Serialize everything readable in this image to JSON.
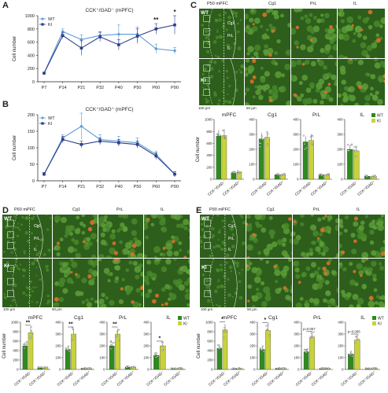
{
  "panels": {
    "A": {
      "letter": "A"
    },
    "B": {
      "letter": "B"
    },
    "C": {
      "letter": "C",
      "title": "P50 mPFC",
      "bars": [
        {
          "title": "mPFC"
        },
        {
          "title": "Cg1"
        },
        {
          "title": "PrL"
        },
        {
          "title": "IL"
        }
      ]
    },
    "D": {
      "letter": "D",
      "title": "P60 mPFC",
      "bars": [
        {
          "title": "mPFC",
          "sig": "**"
        },
        {
          "title": "Cg1",
          "sig": "**"
        },
        {
          "title": "PrL",
          "sig": "**"
        },
        {
          "title": "IL",
          "sig": "*"
        }
      ]
    },
    "E": {
      "letter": "E",
      "title": "P90 mPFC",
      "bars": [
        {
          "title": "mPFC",
          "sig": "*"
        },
        {
          "title": "Cg1",
          "sig": "*"
        },
        {
          "title": "PrL",
          "sig": "p=0.057"
        },
        {
          "title": "IL",
          "sig": "p=0.095"
        }
      ]
    }
  },
  "micro": {
    "wt": "WT",
    "ki": "KI",
    "cg1": "Cg1",
    "prl": "PrL",
    "il": "IL",
    "cg1_s": "Cg1",
    "prl_s": "PrL",
    "il_s": "IL",
    "scale100": "100 μm",
    "scale50": "50 μm"
  },
  "bar_labels": {
    "ylabel": "Cell number",
    "xcat1": "CCK⁺/GAD⁻",
    "xcat2": "CCK⁺/GAD⁺",
    "legend_wt": "WT",
    "legend_ki": "KI"
  },
  "colors": {
    "wt_green": "#2f8a1f",
    "ki_yellow": "#c8d23c",
    "wt_line": "#5b9bd5",
    "ki_line": "#2c3e8c",
    "micro_bg": "#2a5a18"
  },
  "chart_data": [
    {
      "type": "line",
      "title": "CCK⁺/GAD⁻ (mPFC)",
      "ylabel": "Cell number",
      "categories": [
        "P7",
        "P14",
        "P21",
        "P32",
        "P40",
        "P50",
        "P60",
        "P90"
      ],
      "ylim": [
        0,
        1000
      ],
      "yticks": [
        0,
        200,
        400,
        600,
        800,
        1000
      ],
      "series": [
        {
          "name": "WT",
          "values": [
            130,
            760,
            640,
            700,
            720,
            720,
            500,
            470
          ],
          "err": [
            0,
            40,
            70,
            60,
            140,
            110,
            70,
            50
          ]
        },
        {
          "name": "KI",
          "values": [
            130,
            700,
            510,
            680,
            560,
            690,
            800,
            860
          ],
          "err": [
            0,
            40,
            110,
            70,
            80,
            110,
            80,
            140
          ]
        }
      ],
      "annotations": [
        {
          "category": "P60",
          "text": "**"
        },
        {
          "category": "P90",
          "text": "*"
        }
      ]
    },
    {
      "type": "line",
      "title": "CCK⁺/GAD⁺ (mPFC)",
      "ylabel": "Cell number",
      "categories": [
        "P7",
        "P14",
        "P21",
        "P32",
        "P40",
        "P50",
        "P60",
        "P90"
      ],
      "ylim": [
        0,
        200
      ],
      "yticks": [
        0,
        50,
        100,
        150,
        200
      ],
      "series": [
        {
          "name": "WT",
          "values": [
            20,
            130,
            165,
            125,
            120,
            115,
            80,
            20
          ],
          "err": [
            5,
            10,
            40,
            15,
            15,
            15,
            10,
            8
          ]
        },
        {
          "name": "KI",
          "values": [
            20,
            125,
            110,
            120,
            115,
            110,
            75,
            20
          ],
          "err": [
            5,
            10,
            10,
            10,
            10,
            10,
            10,
            8
          ]
        }
      ]
    },
    {
      "type": "bar",
      "panel": "C",
      "region": "mPFC",
      "ylim": [
        0,
        1000
      ],
      "yticks": [
        0,
        200,
        400,
        600,
        800,
        1000
      ],
      "categories": [
        "CCK⁺/GAD⁻",
        "CCK⁺/GAD⁺"
      ],
      "series": [
        {
          "name": "WT",
          "values": [
            720,
            110
          ]
        },
        {
          "name": "KI",
          "values": [
            730,
            115
          ]
        }
      ]
    },
    {
      "type": "bar",
      "panel": "C",
      "region": "Cg1",
      "ylim": [
        0,
        400
      ],
      "yticks": [
        0,
        100,
        200,
        300,
        400
      ],
      "categories": [
        "CCK⁺/GAD⁻",
        "CCK⁺/GAD⁺"
      ],
      "series": [
        {
          "name": "WT",
          "values": [
            270,
            30
          ]
        },
        {
          "name": "KI",
          "values": [
            280,
            30
          ]
        }
      ]
    },
    {
      "type": "bar",
      "panel": "C",
      "region": "PrL",
      "ylim": [
        0,
        400
      ],
      "yticks": [
        0,
        100,
        200,
        300,
        400
      ],
      "categories": [
        "CCK⁺/GAD⁻",
        "CCK⁺/GAD⁺"
      ],
      "series": [
        {
          "name": "WT",
          "values": [
            250,
            30
          ]
        },
        {
          "name": "KI",
          "values": [
            260,
            30
          ]
        }
      ]
    },
    {
      "type": "bar",
      "panel": "C",
      "region": "IL",
      "ylim": [
        0,
        400
      ],
      "yticks": [
        0,
        100,
        200,
        300,
        400
      ],
      "categories": [
        "CCK⁺/GAD⁻",
        "CCK⁺/GAD⁺"
      ],
      "series": [
        {
          "name": "WT",
          "values": [
            200,
            20
          ]
        },
        {
          "name": "KI",
          "values": [
            190,
            20
          ]
        }
      ]
    },
    {
      "type": "bar",
      "panel": "D",
      "region": "mPFC",
      "ylim": [
        0,
        1000
      ],
      "yticks": [
        0,
        200,
        400,
        600,
        800,
        1000
      ],
      "categories": [
        "CCK⁺/GAD⁻",
        "CCK⁺/GAD⁺"
      ],
      "series": [
        {
          "name": "WT",
          "values": [
            500,
            40
          ]
        },
        {
          "name": "KI",
          "values": [
            780,
            40
          ]
        }
      ]
    },
    {
      "type": "bar",
      "panel": "D",
      "region": "Cg1",
      "ylim": [
        0,
        400
      ],
      "yticks": [
        0,
        100,
        200,
        300,
        400
      ],
      "categories": [
        "CCK⁺/GAD⁻",
        "CCK⁺/GAD⁺"
      ],
      "series": [
        {
          "name": "WT",
          "values": [
            170,
            10
          ]
        },
        {
          "name": "KI",
          "values": [
            300,
            10
          ]
        }
      ]
    },
    {
      "type": "bar",
      "panel": "D",
      "region": "PrL",
      "ylim": [
        0,
        400
      ],
      "yticks": [
        0,
        100,
        200,
        300,
        400
      ],
      "categories": [
        "CCK⁺/GAD⁻",
        "CCK⁺/GAD⁺"
      ],
      "series": [
        {
          "name": "WT",
          "values": [
            200,
            20
          ]
        },
        {
          "name": "KI",
          "values": [
            300,
            20
          ]
        }
      ]
    },
    {
      "type": "bar",
      "panel": "D",
      "region": "IL",
      "ylim": [
        0,
        400
      ],
      "yticks": [
        0,
        100,
        200,
        300,
        400
      ],
      "categories": [
        "CCK⁺/GAD⁻",
        "CCK⁺/GAD⁺"
      ],
      "series": [
        {
          "name": "WT",
          "values": [
            120,
            10
          ]
        },
        {
          "name": "KI",
          "values": [
            200,
            10
          ]
        }
      ]
    },
    {
      "type": "bar",
      "panel": "E",
      "region": "mPFC",
      "ylim": [
        0,
        1000
      ],
      "yticks": [
        0,
        200,
        400,
        600,
        800,
        1000
      ],
      "categories": [
        "CCK⁺/GAD⁻",
        "CCK⁺/GAD⁺"
      ],
      "series": [
        {
          "name": "WT",
          "values": [
            450,
            20
          ]
        },
        {
          "name": "KI",
          "values": [
            840,
            20
          ]
        }
      ]
    },
    {
      "type": "bar",
      "panel": "E",
      "region": "Cg1",
      "ylim": [
        0,
        400
      ],
      "yticks": [
        0,
        100,
        200,
        300,
        400
      ],
      "categories": [
        "CCK⁺/GAD⁻",
        "CCK⁺/GAD⁺"
      ],
      "series": [
        {
          "name": "WT",
          "values": [
            170,
            10
          ]
        },
        {
          "name": "KI",
          "values": [
            330,
            10
          ]
        }
      ]
    },
    {
      "type": "bar",
      "panel": "E",
      "region": "PrL",
      "ylim": [
        0,
        400
      ],
      "yticks": [
        0,
        100,
        200,
        300,
        400
      ],
      "categories": [
        "CCK⁺/GAD⁻",
        "CCK⁺/GAD⁺"
      ],
      "series": [
        {
          "name": "WT",
          "values": [
            150,
            10
          ]
        },
        {
          "name": "KI",
          "values": [
            270,
            10
          ]
        }
      ]
    },
    {
      "type": "bar",
      "panel": "E",
      "region": "IL",
      "ylim": [
        0,
        400
      ],
      "yticks": [
        0,
        100,
        200,
        300,
        400
      ],
      "categories": [
        "CCK⁺/GAD⁻",
        "CCK⁺/GAD⁺"
      ],
      "series": [
        {
          "name": "WT",
          "values": [
            130,
            10
          ]
        },
        {
          "name": "KI",
          "values": [
            250,
            10
          ]
        }
      ]
    }
  ]
}
